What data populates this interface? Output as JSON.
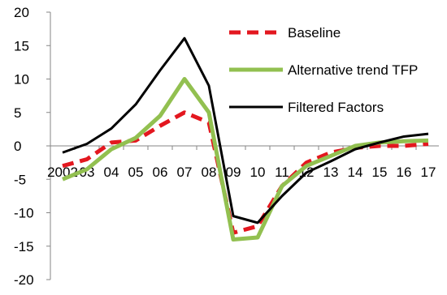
{
  "chart_data": {
    "type": "line",
    "title": "",
    "xlabel": "",
    "ylabel": "",
    "categories": [
      "2002",
      "03",
      "04",
      "05",
      "06",
      "07",
      "08",
      "09",
      "10",
      "11",
      "12",
      "13",
      "14",
      "15",
      "16",
      "17"
    ],
    "tick_labels": [
      "2002",
      "03",
      "04",
      "05",
      "06",
      "07",
      "08",
      "09",
      "10",
      "11",
      "12",
      "13",
      "14",
      "15",
      "16",
      "17"
    ],
    "ylim": [
      -20,
      20
    ],
    "yticks": [
      -20,
      -15,
      -10,
      -5,
      0,
      5,
      10,
      15,
      20
    ],
    "grid": false,
    "legend_position": "top-right",
    "series": [
      {
        "name": "Baseline",
        "color": "#e3171f",
        "style": "dashed",
        "values": [
          -3,
          -2,
          0.5,
          0.8,
          3,
          5,
          3.5,
          -13,
          -12,
          -6,
          -2.5,
          -1,
          -0.3,
          0,
          0,
          0.3
        ]
      },
      {
        "name": "Alternative trend TFP",
        "color": "#92c050",
        "style": "solid",
        "values": [
          -5,
          -3.5,
          -0.5,
          1.2,
          4.5,
          10,
          5,
          -14,
          -13.7,
          -6,
          -3,
          -1.5,
          0,
          0.5,
          0.7,
          0.8
        ]
      },
      {
        "name": "Filtered Factors",
        "color": "#000000",
        "style": "solid",
        "values": [
          -1,
          0.3,
          2.6,
          6.2,
          11.3,
          16.1,
          9,
          -10.5,
          -11.5,
          -7.5,
          -4,
          -2.3,
          -0.5,
          0.5,
          1.4,
          1.8
        ]
      }
    ]
  }
}
